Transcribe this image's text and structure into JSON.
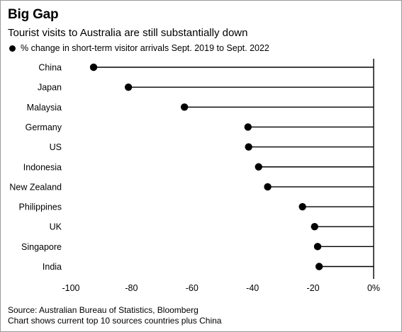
{
  "header": {
    "title": "Big Gap",
    "subtitle": "Tourist visits to Australia are still substantially down"
  },
  "legend": {
    "label": "% change in short-term visitor arrivals Sept. 2019 to Sept. 2022"
  },
  "footer": {
    "source": "Source: Australian Bureau of Statistics, Bloomberg",
    "note": "Chart shows current top 10 sources countries plus China"
  },
  "colors": {
    "marker": "#000000",
    "line": "#000000"
  },
  "chart_data": {
    "type": "dot-plot",
    "categories": [
      "China",
      "Japan",
      "Malaysia",
      "Germany",
      "US",
      "Indonesia",
      "New Zealand",
      "Philippines",
      "UK",
      "Singapore",
      "India"
    ],
    "series": [
      {
        "name": "% change in short-term visitor arrivals Sept. 2019 to Sept. 2022",
        "values": [
          -92.5,
          -81,
          -62.5,
          -41.5,
          -41.3,
          -38,
          -35,
          -23.5,
          -19.5,
          -18.5,
          -18
        ]
      }
    ],
    "xlim": [
      -100,
      0
    ],
    "xticks": [
      -100,
      -80,
      -60,
      -40,
      -20,
      0
    ],
    "xtick_labels": [
      "-100",
      "-80",
      "-60",
      "-40",
      "-20",
      "0%"
    ],
    "grid": false,
    "legend_position": "top-left"
  }
}
